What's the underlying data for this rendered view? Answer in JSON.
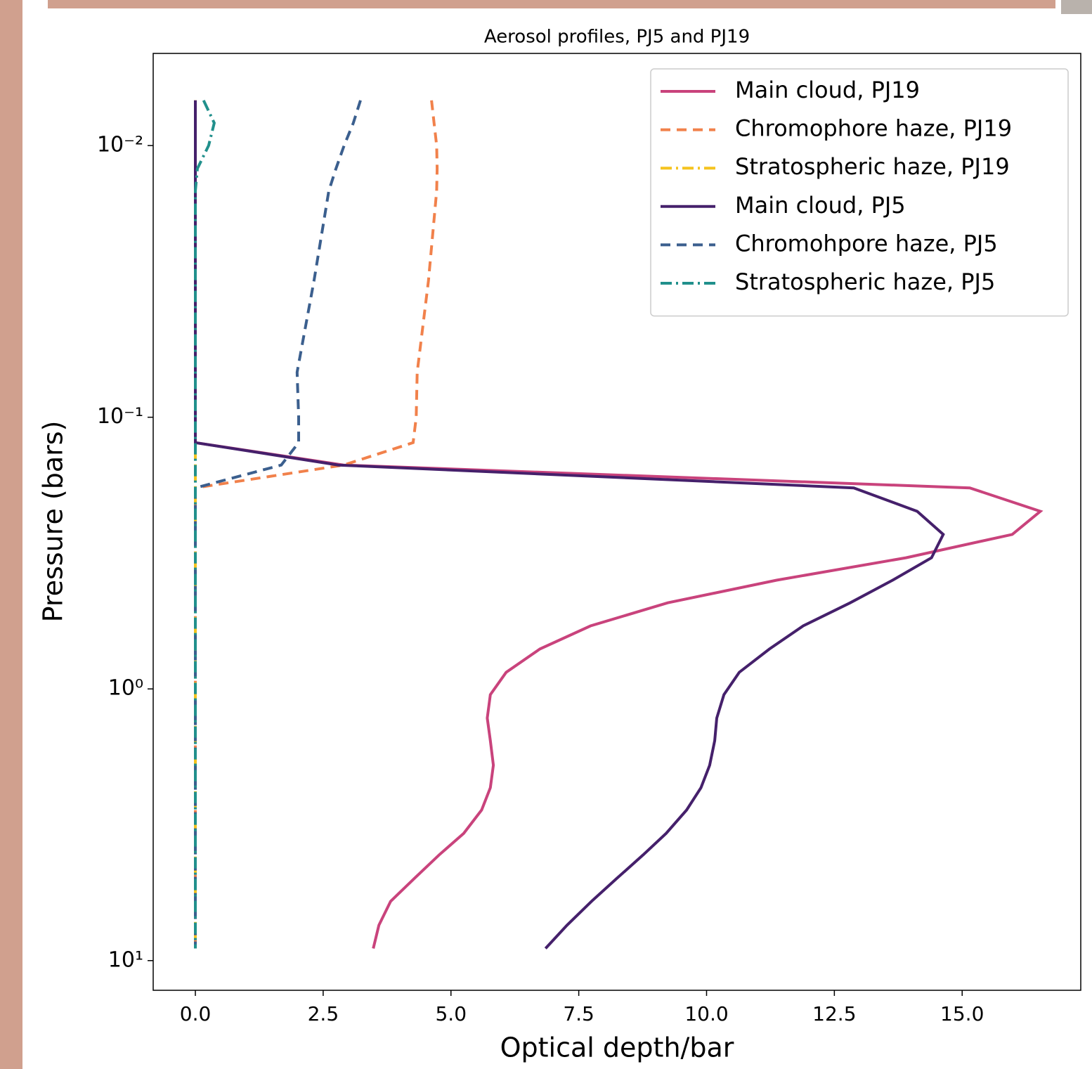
{
  "chart_data": {
    "type": "line",
    "title": "Aerosol profiles, PJ5 and PJ19",
    "xlabel": "Optical depth/bar",
    "ylabel": "Pressure (bars)",
    "log_y": true,
    "y_inverted": true,
    "legend": "upper right",
    "xlim": [
      -0.825,
      17.32
    ],
    "ylim": [
      0.00458,
      12.86
    ],
    "xticks": [
      {
        "value": 0,
        "label": "0.0"
      },
      {
        "value": 2.5,
        "label": "2.5"
      },
      {
        "value": 5,
        "label": "5.0"
      },
      {
        "value": 7.5,
        "label": "7.5"
      },
      {
        "value": 10,
        "label": "10.0"
      },
      {
        "value": 12.5,
        "label": "12.5"
      },
      {
        "value": 15,
        "label": "15.0"
      }
    ],
    "yticks": [
      {
        "value": 0.01,
        "label": "10⁻²"
      },
      {
        "value": 0.1,
        "label": "10⁻¹"
      },
      {
        "value": 1,
        "label": "10⁰"
      },
      {
        "value": 10,
        "label": "10¹"
      }
    ],
    "y": [
      0.00682,
      0.00826,
      0.01,
      0.01216,
      0.01469,
      0.0315,
      0.0683,
      0.1,
      0.124,
      0.15,
      0.182,
      0.222,
      0.27,
      0.329,
      0.398,
      0.482,
      0.586,
      0.713,
      0.869,
      1.05,
      1.28,
      1.55,
      1.91,
      2.31,
      2.79,
      3.4,
      4.08,
      4.97,
      6.05,
      7.41,
      9.02
    ],
    "series": [
      {
        "name": "Main cloud, PJ19",
        "color": "#c9437c",
        "style": "solid",
        "x": [
          0,
          0,
          0,
          0,
          0,
          0,
          0,
          0,
          0,
          2.9,
          15.15,
          16.53,
          15.98,
          13.9,
          11.37,
          9.24,
          7.73,
          6.74,
          6.08,
          5.77,
          5.71,
          5.77,
          5.83,
          5.77,
          5.6,
          5.25,
          4.77,
          4.29,
          3.82,
          3.59,
          3.48
        ]
      },
      {
        "name": "Chromophore haze, PJ19",
        "color": "#f1814b",
        "style": "dashed",
        "x": [
          4.62,
          4.67,
          4.72,
          4.73,
          4.72,
          4.56,
          4.34,
          4.32,
          4.26,
          2.9,
          0,
          0,
          0,
          0,
          0,
          0,
          0,
          0,
          0,
          0,
          0,
          0,
          0,
          0,
          0,
          0,
          0,
          0,
          0,
          0,
          0
        ]
      },
      {
        "name": "Stratospheric haze, PJ19",
        "color": "#f5c41f",
        "style": "dashdot",
        "x": [
          0,
          0,
          0,
          0,
          0,
          0,
          0,
          0,
          0,
          0,
          0,
          0,
          0,
          0,
          0,
          0,
          0,
          0,
          0,
          0,
          0,
          0,
          0,
          0,
          0,
          0,
          0,
          0,
          0,
          0,
          0
        ]
      },
      {
        "name": "Main cloud, PJ5",
        "color": "#45206b",
        "style": "solid",
        "x": [
          0,
          0,
          0,
          0,
          0,
          0,
          0,
          0,
          0,
          2.8,
          12.88,
          14.12,
          14.63,
          14.4,
          13.64,
          12.81,
          11.89,
          11.23,
          10.64,
          10.34,
          10.2,
          10.16,
          10.06,
          9.89,
          9.61,
          9.21,
          8.76,
          8.25,
          7.75,
          7.27,
          6.85
        ]
      },
      {
        "name": "Chromohpore haze, PJ5",
        "color": "#3b5f8e",
        "style": "dashed",
        "x": [
          3.23,
          3.09,
          2.91,
          2.75,
          2.61,
          2.32,
          1.99,
          2.02,
          2.02,
          1.68,
          0,
          0,
          0,
          0,
          0,
          0,
          0,
          0,
          0,
          0,
          0,
          0,
          0,
          0,
          0,
          0,
          0,
          0,
          0,
          0,
          0
        ]
      },
      {
        "name": "Stratospheric haze, PJ5",
        "color": "#21908c",
        "style": "dashdot",
        "x": [
          0.16,
          0.37,
          0.26,
          0.04,
          0,
          0,
          0,
          0,
          0,
          0,
          0,
          0,
          0,
          0,
          0,
          0,
          0,
          0,
          0,
          0,
          0,
          0,
          0,
          0,
          0,
          0,
          0,
          0,
          0,
          0,
          0
        ]
      }
    ]
  }
}
